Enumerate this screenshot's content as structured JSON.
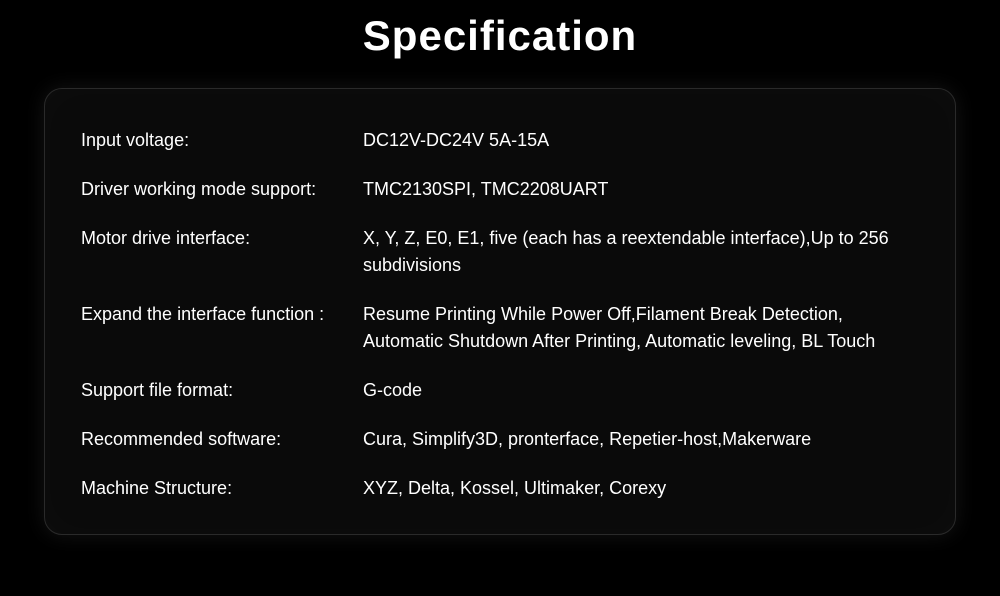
{
  "title": "Specification",
  "panel": {
    "background_color": "#0a0a0a",
    "border_color": "#2a2a2a",
    "border_radius": 18,
    "text_color": "#ffffff",
    "label_fontsize": 18,
    "value_fontsize": 18,
    "label_col_width": 282
  },
  "specs": [
    {
      "label": "Input voltage:",
      "value": "DC12V-DC24V 5A-15A"
    },
    {
      "label": "Driver working mode support:",
      "value": "TMC2130SPI, TMC2208UART"
    },
    {
      "label": "Motor drive interface:",
      "value": "X, Y, Z, E0, E1, five (each has a reextendable interface),Up to 256 subdivisions"
    },
    {
      "label": "Expand the interface function :",
      "value": "Resume Printing While Power Off,Filament Break Detection, Automatic Shutdown After Printing, Automatic leveling, BL Touch"
    },
    {
      "label": "Support file format:",
      "value": "G-code"
    },
    {
      "label": "Recommended software:",
      "value": "Cura, Simplify3D, pronterface, Repetier-host,Makerware"
    },
    {
      "label": "Machine Structure:",
      "value": "XYZ, Delta, Kossel, Ultimaker, Corexy"
    }
  ]
}
